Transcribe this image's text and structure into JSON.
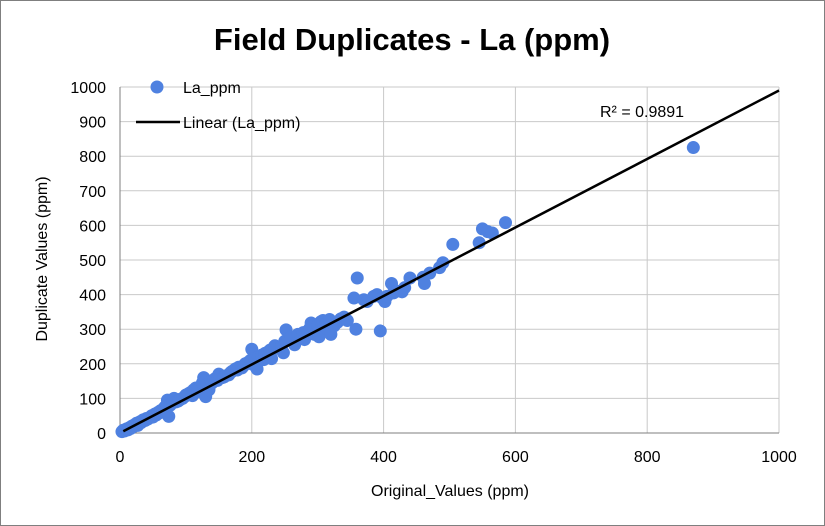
{
  "chart_data": {
    "type": "scatter",
    "title": "Field Duplicates  - La (ppm)",
    "xlabel": "Original_Values (ppm)",
    "ylabel": "Duplicate Values (ppm)",
    "xlim": [
      0,
      1000
    ],
    "ylim": [
      0,
      1000
    ],
    "x_ticks": [
      "0",
      "200",
      "400",
      "600",
      "800",
      "1000"
    ],
    "y_ticks": [
      "0",
      "100",
      "200",
      "300",
      "400",
      "500",
      "600",
      "700",
      "800",
      "900",
      "1000"
    ],
    "grid": true,
    "legend_position": "top-left",
    "annotation": "R² = 0.9891",
    "colors": {
      "points": "#4f81e0",
      "trendline": "#000000"
    },
    "series": [
      {
        "name": "La_ppm",
        "kind": "scatter",
        "points": [
          [
            3,
            4
          ],
          [
            5,
            8
          ],
          [
            7,
            6
          ],
          [
            9,
            10
          ],
          [
            10,
            12
          ],
          [
            12,
            9
          ],
          [
            14,
            15
          ],
          [
            16,
            13
          ],
          [
            18,
            20
          ],
          [
            20,
            18
          ],
          [
            22,
            24
          ],
          [
            25,
            28
          ],
          [
            27,
            22
          ],
          [
            30,
            32
          ],
          [
            32,
            30
          ],
          [
            35,
            38
          ],
          [
            38,
            36
          ],
          [
            40,
            42
          ],
          [
            42,
            40
          ],
          [
            45,
            44
          ],
          [
            48,
            50
          ],
          [
            50,
            46
          ],
          [
            53,
            55
          ],
          [
            55,
            52
          ],
          [
            58,
            60
          ],
          [
            60,
            58
          ],
          [
            62,
            65
          ],
          [
            65,
            62
          ],
          [
            68,
            75
          ],
          [
            70,
            68
          ],
          [
            72,
            95
          ],
          [
            74,
            48
          ],
          [
            76,
            80
          ],
          [
            78,
            85
          ],
          [
            80,
            88
          ],
          [
            82,
            100
          ],
          [
            85,
            90
          ],
          [
            88,
            92
          ],
          [
            90,
            95
          ],
          [
            92,
            98
          ],
          [
            95,
            100
          ],
          [
            98,
            105
          ],
          [
            100,
            110
          ],
          [
            103,
            112
          ],
          [
            105,
            115
          ],
          [
            108,
            118
          ],
          [
            110,
            108
          ],
          [
            112,
            125
          ],
          [
            115,
            130
          ],
          [
            118,
            120
          ],
          [
            120,
            128
          ],
          [
            123,
            135
          ],
          [
            125,
            145
          ],
          [
            127,
            160
          ],
          [
            130,
            105
          ],
          [
            132,
            140
          ],
          [
            135,
            125
          ],
          [
            138,
            150
          ],
          [
            140,
            145
          ],
          [
            143,
            155
          ],
          [
            145,
            158
          ],
          [
            148,
            152
          ],
          [
            150,
            170
          ],
          [
            155,
            160
          ],
          [
            158,
            162
          ],
          [
            160,
            165
          ],
          [
            165,
            168
          ],
          [
            168,
            175
          ],
          [
            170,
            178
          ],
          [
            175,
            185
          ],
          [
            178,
            182
          ],
          [
            180,
            190
          ],
          [
            185,
            188
          ],
          [
            188,
            195
          ],
          [
            190,
            200
          ],
          [
            195,
            205
          ],
          [
            198,
            210
          ],
          [
            200,
            242
          ],
          [
            202,
            198
          ],
          [
            205,
            215
          ],
          [
            208,
            185
          ],
          [
            210,
            220
          ],
          [
            215,
            225
          ],
          [
            218,
            212
          ],
          [
            220,
            230
          ],
          [
            225,
            235
          ],
          [
            228,
            240
          ],
          [
            230,
            215
          ],
          [
            235,
            252
          ],
          [
            240,
            245
          ],
          [
            245,
            250
          ],
          [
            248,
            232
          ],
          [
            250,
            265
          ],
          [
            252,
            298
          ],
          [
            255,
            272
          ],
          [
            260,
            278
          ],
          [
            265,
            255
          ],
          [
            270,
            285
          ],
          [
            275,
            280
          ],
          [
            278,
            290
          ],
          [
            280,
            270
          ],
          [
            285,
            295
          ],
          [
            288,
            302
          ],
          [
            290,
            318
          ],
          [
            292,
            310
          ],
          [
            295,
            285
          ],
          [
            298,
            290
          ],
          [
            300,
            312
          ],
          [
            302,
            278
          ],
          [
            305,
            322
          ],
          [
            308,
            325
          ],
          [
            310,
            308
          ],
          [
            312,
            315
          ],
          [
            315,
            300
          ],
          [
            318,
            328
          ],
          [
            320,
            285
          ],
          [
            325,
            310
          ],
          [
            330,
            320
          ],
          [
            335,
            330
          ],
          [
            340,
            335
          ],
          [
            345,
            325
          ],
          [
            355,
            390
          ],
          [
            358,
            300
          ],
          [
            360,
            448
          ],
          [
            370,
            385
          ],
          [
            375,
            380
          ],
          [
            385,
            395
          ],
          [
            390,
            400
          ],
          [
            395,
            295
          ],
          [
            398,
            390
          ],
          [
            402,
            380
          ],
          [
            405,
            395
          ],
          [
            412,
            432
          ],
          [
            415,
            405
          ],
          [
            420,
            410
          ],
          [
            428,
            408
          ],
          [
            432,
            420
          ],
          [
            440,
            448
          ],
          [
            460,
            450
          ],
          [
            462,
            432
          ],
          [
            470,
            462
          ],
          [
            485,
            478
          ],
          [
            490,
            492
          ],
          [
            505,
            545
          ],
          [
            545,
            550
          ],
          [
            550,
            590
          ],
          [
            558,
            582
          ],
          [
            565,
            578
          ],
          [
            585,
            608
          ],
          [
            870,
            825
          ]
        ]
      },
      {
        "name": "Linear (La_ppm)",
        "kind": "trendline",
        "points": [
          [
            5,
            5
          ],
          [
            1000,
            990
          ]
        ]
      }
    ]
  }
}
